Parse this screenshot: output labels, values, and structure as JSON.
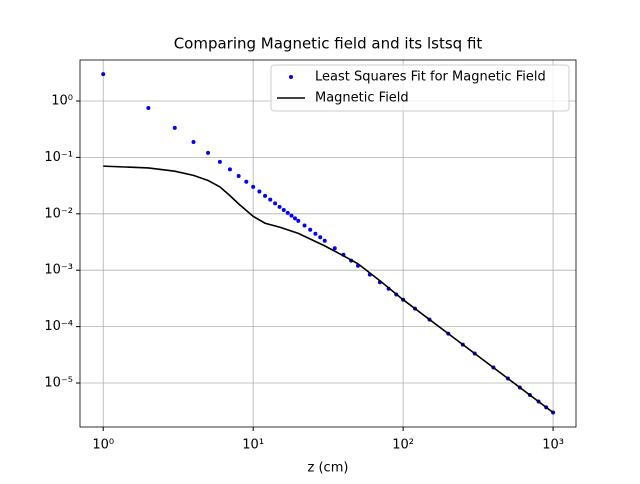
{
  "chart_data": {
    "type": "line",
    "title": "Comparing Magnetic field and its lstsq fit",
    "xlabel": "z (cm)",
    "xscale": "log",
    "yscale": "log",
    "grid": true,
    "legend": "upper right",
    "xlim": [
      0.7,
      1422
    ],
    "ylim": [
      1.66e-06,
      5.33
    ],
    "xticks": [
      {
        "value": 1,
        "label": "10⁰"
      },
      {
        "value": 10,
        "label": "10¹"
      },
      {
        "value": 100,
        "label": "10²"
      },
      {
        "value": 1000,
        "label": "10³"
      }
    ],
    "yticks": [
      {
        "value": 1e-05,
        "label": "10⁻⁵"
      },
      {
        "value": 0.0001,
        "label": "10⁻⁴"
      },
      {
        "value": 0.001,
        "label": "10⁻³"
      },
      {
        "value": 0.01,
        "label": "10⁻²"
      },
      {
        "value": 0.1,
        "label": "10⁻¹"
      },
      {
        "value": 1,
        "label": "10⁰"
      }
    ],
    "series": [
      {
        "name": "Least Squares Fit for Magnetic Field",
        "style": "points",
        "color": "#0000ff",
        "x": [
          1,
          2,
          3,
          4,
          5,
          6,
          7,
          8,
          9,
          10,
          11,
          12,
          13,
          14,
          15,
          16,
          17,
          18,
          19,
          20,
          22,
          24,
          26,
          28,
          30,
          35,
          40,
          45,
          50,
          60,
          70,
          80,
          90,
          100,
          120,
          150,
          200,
          250,
          300,
          400,
          500,
          600,
          700,
          800,
          900,
          1000
        ],
        "values": [
          3,
          0.75,
          0.333,
          0.1875,
          0.12,
          0.0833,
          0.0612,
          0.0469,
          0.037,
          0.03,
          0.0248,
          0.0208,
          0.0178,
          0.0153,
          0.0133,
          0.0117,
          0.0104,
          0.00926,
          0.00831,
          0.0075,
          0.0062,
          0.00521,
          0.00444,
          0.00383,
          0.00333,
          0.00245,
          0.00188,
          0.00148,
          0.0012,
          0.000833,
          0.000612,
          0.000469,
          0.00037,
          0.0003,
          0.000208,
          0.000133,
          7.5e-05,
          4.8e-05,
          3.33e-05,
          1.88e-05,
          1.2e-05,
          8.33e-06,
          6.12e-06,
          4.69e-06,
          3.7e-06,
          3e-06
        ]
      },
      {
        "name": "Magnetic Field",
        "style": "line",
        "color": "#000000",
        "x": [
          1,
          2,
          3,
          4,
          5,
          6,
          7,
          8,
          10,
          12,
          15,
          20,
          30,
          40,
          50,
          70,
          100,
          200,
          500,
          1000
        ],
        "values": [
          0.07,
          0.065,
          0.057,
          0.048,
          0.039,
          0.03,
          0.021,
          0.015,
          0.009,
          0.0068,
          0.0058,
          0.0045,
          0.0027,
          0.0018,
          0.0013,
          0.00065,
          0.0003,
          7.5e-05,
          1.2e-05,
          3e-06
        ]
      }
    ]
  }
}
